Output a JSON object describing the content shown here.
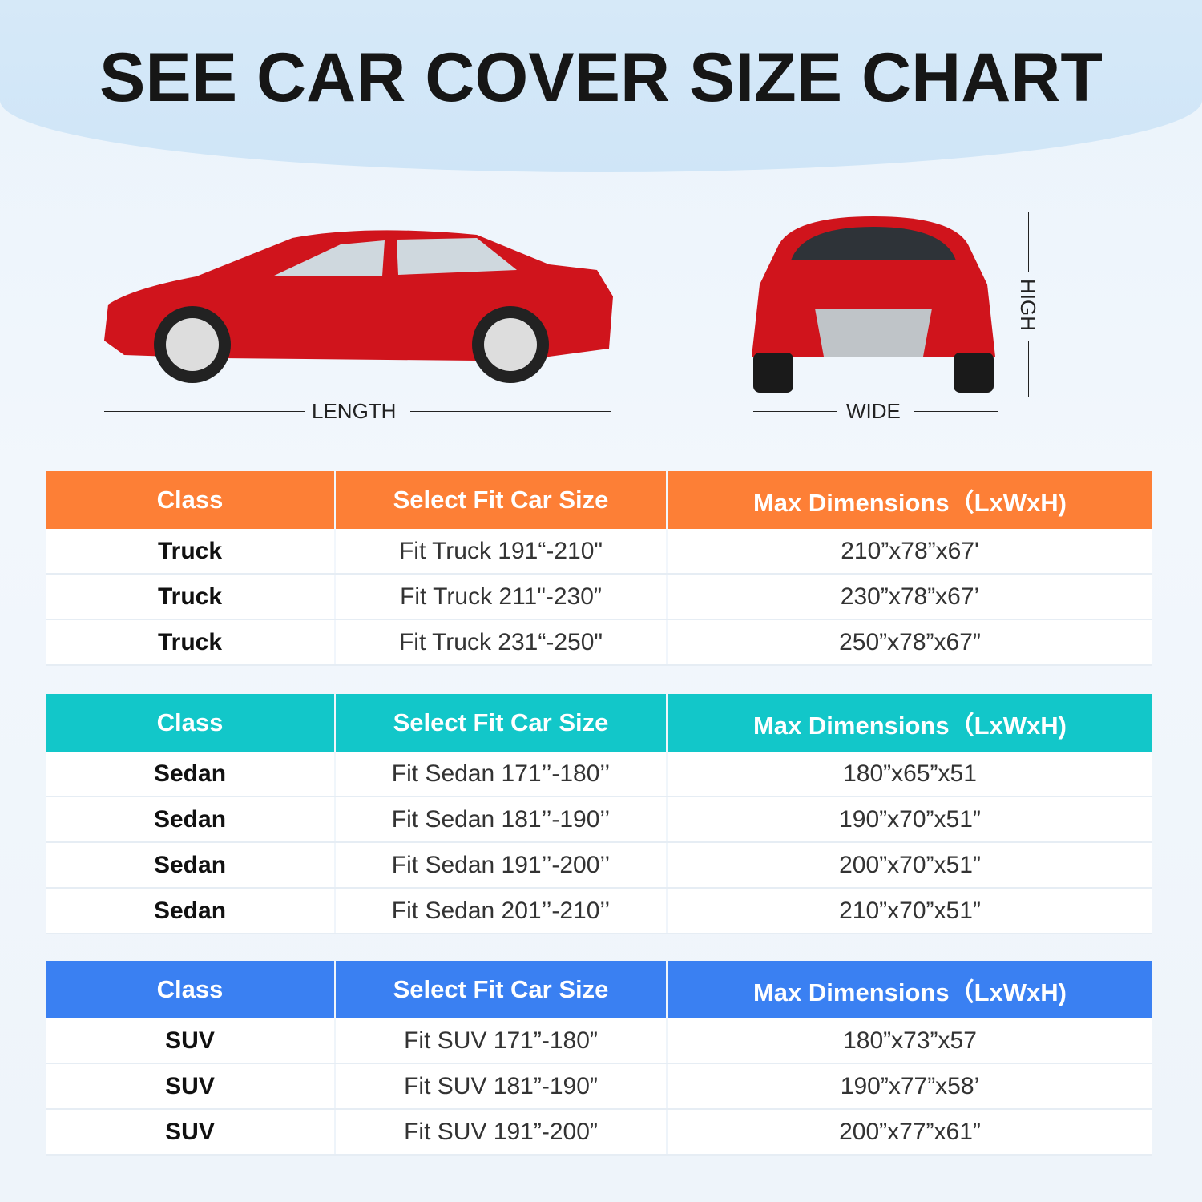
{
  "title": "SEE CAR COVER SIZE CHART",
  "labels": {
    "length": "LENGTH",
    "wide": "WIDE",
    "high": "HIGH"
  },
  "colors": {
    "truck_header": "#fd7f36",
    "sedan_header": "#12c7c9",
    "suv_header": "#3a80f2",
    "car": "#d0141c"
  },
  "headers": {
    "class": "Class",
    "fit": "Select Fit Car Size",
    "max": "Max Dimensions（LxWxH)"
  },
  "tables": [
    {
      "rows": [
        [
          "Truck",
          "Fit Truck 191“-210\"",
          "210”x78”x67'"
        ],
        [
          "Truck",
          "Fit Truck 211\"-230”",
          "230”x78”x67’"
        ],
        [
          "Truck",
          "Fit Truck 231“-250\"",
          "250”x78”x67”"
        ]
      ]
    },
    {
      "rows": [
        [
          "Sedan",
          "Fit Sedan 171’’-180’’",
          "180”x65”x51"
        ],
        [
          "Sedan",
          "Fit Sedan 181’’-190’’",
          "190”x70”x51”"
        ],
        [
          "Sedan",
          "Fit Sedan 191’’-200’’",
          "200”x70”x51”"
        ],
        [
          "Sedan",
          "Fit Sedan 201’’-210’’",
          "210”x70”x51”"
        ]
      ]
    },
    {
      "rows": [
        [
          "SUV",
          "Fit SUV 171”-180”",
          "180”x73”x57"
        ],
        [
          "SUV",
          "Fit SUV 181”-190”",
          "190”x77”x58’"
        ],
        [
          "SUV",
          "Fit SUV 191”-200”",
          "200”x77”x61”"
        ]
      ]
    }
  ]
}
